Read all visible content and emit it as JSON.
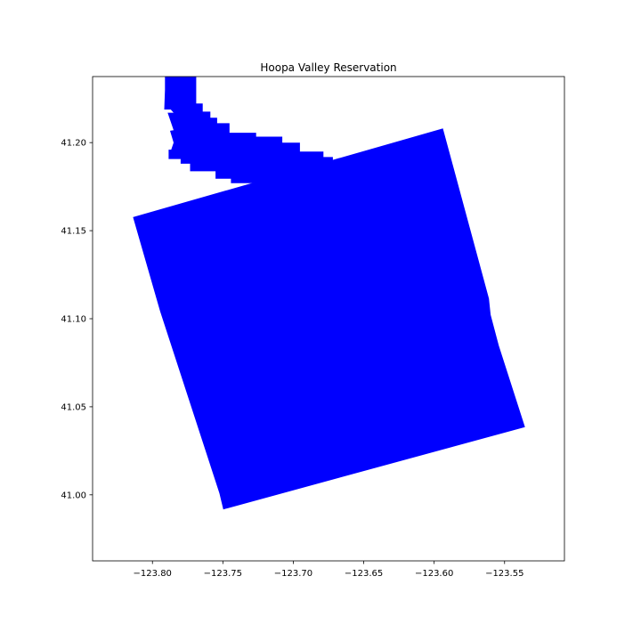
{
  "chart_data": {
    "type": "map",
    "title": "Hoopa Valley Reservation",
    "xlabel": "",
    "ylabel": "",
    "xlim": [
      -123.8425,
      -123.5075
    ],
    "ylim": [
      40.9625,
      41.2375
    ],
    "grid": false,
    "x_ticks": [
      -123.8,
      -123.75,
      -123.7,
      -123.65,
      -123.6,
      -123.55
    ],
    "x_tick_labels": [
      "−123.80",
      "−123.75",
      "−123.70",
      "−123.65",
      "−123.60",
      "−123.55"
    ],
    "y_ticks": [
      41.0,
      41.05,
      41.1,
      41.15,
      41.2
    ],
    "y_tick_labels": [
      "41.00",
      "41.05",
      "41.10",
      "41.15",
      "41.20"
    ],
    "fill_color": "#0000ff",
    "polygons": [
      {
        "part": "main-tract",
        "coordinates": [
          [
            -123.8138,
            41.1577
          ],
          [
            -123.5938,
            41.2081
          ],
          [
            -123.5611,
            41.1114
          ],
          [
            -123.5599,
            41.1023
          ],
          [
            -123.5541,
            41.0847
          ],
          [
            -123.5355,
            41.0385
          ],
          [
            -123.7497,
            40.9917
          ],
          [
            -123.7524,
            41.0008
          ],
          [
            -123.7946,
            41.1043
          ],
          [
            -123.8138,
            41.1577
          ]
        ]
      },
      {
        "part": "northern-extension",
        "coordinates": [
          [
            -123.7911,
            41.2375
          ],
          [
            -123.7689,
            41.2375
          ],
          [
            -123.7689,
            41.2222
          ],
          [
            -123.7643,
            41.2222
          ],
          [
            -123.7643,
            41.2176
          ],
          [
            -123.7589,
            41.2176
          ],
          [
            -123.7589,
            41.2141
          ],
          [
            -123.7541,
            41.2141
          ],
          [
            -123.7541,
            41.211
          ],
          [
            -123.7453,
            41.211
          ],
          [
            -123.7453,
            41.2056
          ],
          [
            -123.7264,
            41.2056
          ],
          [
            -123.7264,
            41.2034
          ],
          [
            -123.7078,
            41.2034
          ],
          [
            -123.7078,
            41.2
          ],
          [
            -123.6953,
            41.2
          ],
          [
            -123.6953,
            41.1949
          ],
          [
            -123.6786,
            41.1949
          ],
          [
            -123.6786,
            41.1918
          ],
          [
            -123.6719,
            41.1918
          ],
          [
            -123.6719,
            41.1891
          ],
          [
            -123.666,
            41.1891
          ],
          [
            -123.666,
            41.1876
          ],
          [
            -123.7292,
            41.177
          ],
          [
            -123.7443,
            41.177
          ],
          [
            -123.7443,
            41.1795
          ],
          [
            -123.7552,
            41.1795
          ],
          [
            -123.7552,
            41.1837
          ],
          [
            -123.7733,
            41.1837
          ],
          [
            -123.7733,
            41.188
          ],
          [
            -123.78,
            41.188
          ],
          [
            -123.78,
            41.1907
          ],
          [
            -123.7885,
            41.1907
          ],
          [
            -123.7885,
            41.196
          ],
          [
            -123.7867,
            41.196
          ],
          [
            -123.785,
            41.2
          ],
          [
            -123.7875,
            41.2067
          ],
          [
            -123.785,
            41.207
          ],
          [
            -123.7892,
            41.217
          ],
          [
            -123.785,
            41.217
          ],
          [
            -123.787,
            41.2188
          ],
          [
            -123.7916,
            41.2188
          ],
          [
            -123.7911,
            41.23
          ],
          [
            -123.7911,
            41.2375
          ]
        ]
      }
    ]
  }
}
